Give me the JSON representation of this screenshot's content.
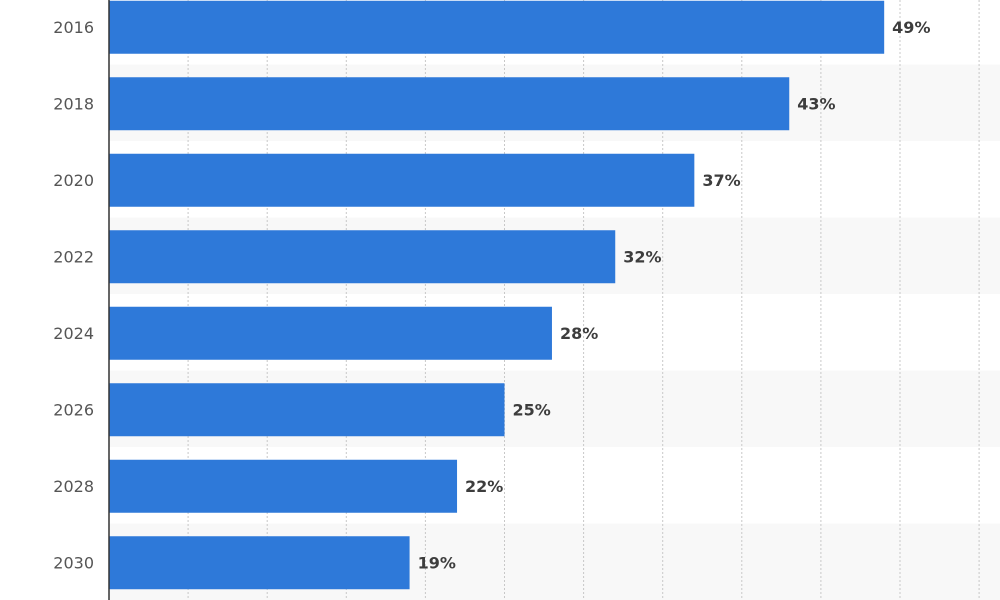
{
  "chart_data": {
    "type": "bar",
    "orientation": "horizontal",
    "categories": [
      "2016",
      "2018",
      "2020",
      "2022",
      "2024",
      "2026",
      "2028",
      "2030"
    ],
    "values": [
      49,
      43,
      37,
      32,
      28,
      25,
      22,
      19
    ],
    "value_labels": [
      "49%",
      "43%",
      "37%",
      "32%",
      "28%",
      "25%",
      "22%",
      "19%"
    ],
    "unit": "%",
    "title": "",
    "xlabel": "",
    "ylabel": "",
    "xlim": [
      0,
      55
    ],
    "grid": true,
    "legend": "none",
    "colors": {
      "bar": "#2e79d9",
      "band_alt": "#f8f8f8",
      "axis": "#333333",
      "grid": "#c8c8c8"
    }
  }
}
